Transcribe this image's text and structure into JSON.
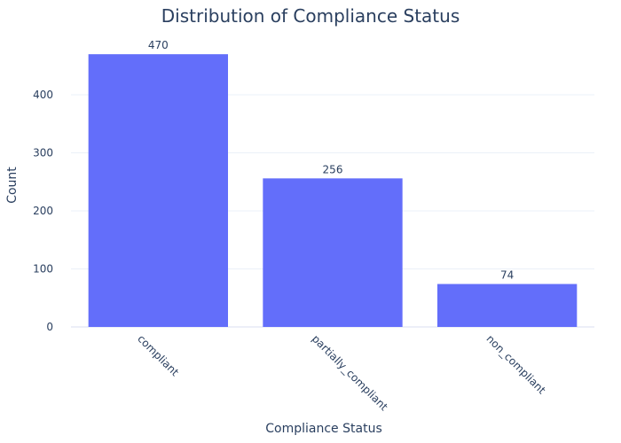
{
  "chart_data": {
    "type": "bar",
    "title": "Distribution of Compliance Status",
    "xlabel": "Compliance Status",
    "ylabel": "Count",
    "categories": [
      "compliant",
      "partially_compliant",
      "non_compliant"
    ],
    "values": [
      470,
      256,
      74
    ],
    "data_labels": [
      "470",
      "256",
      "74"
    ],
    "yticks": [
      0,
      100,
      200,
      300,
      400
    ],
    "ytick_labels": [
      "0",
      "100",
      "200",
      "300",
      "400"
    ],
    "ylim": [
      0,
      494.7
    ],
    "grid": true,
    "legend": "none",
    "bar_color": "#636efa",
    "x_tick_rotation_deg": 45
  }
}
